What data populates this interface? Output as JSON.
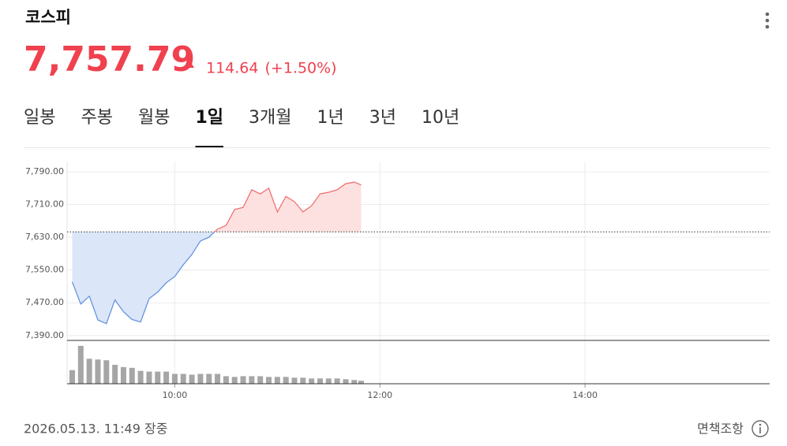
{
  "header": {
    "title": "코스피",
    "price": "7,757.79",
    "change": "114.64",
    "change_pct": "(+1.50%)"
  },
  "tabs": {
    "items": [
      "일봉",
      "주봉",
      "월봉",
      "1일",
      "3개월",
      "1년",
      "3년",
      "10년"
    ],
    "selected": 3
  },
  "chart_data": {
    "type": "line",
    "x": [
      "09:00",
      "09:05",
      "09:10",
      "09:15",
      "09:20",
      "09:25",
      "09:30",
      "09:35",
      "09:40",
      "09:45",
      "09:50",
      "09:55",
      "10:00",
      "10:05",
      "10:10",
      "10:15",
      "10:20",
      "10:25",
      "10:30",
      "10:35",
      "10:40",
      "10:45",
      "10:50",
      "10:55",
      "11:00",
      "11:05",
      "11:10",
      "11:15",
      "11:20",
      "11:25",
      "11:30",
      "11:35",
      "11:40",
      "11:45",
      "11:49"
    ],
    "series": [
      {
        "values": [
          7521,
          7467,
          7486,
          7428,
          7419,
          7477,
          7448,
          7429,
          7423,
          7480,
          7496,
          7519,
          7534,
          7563,
          7588,
          7621,
          7630,
          7650,
          7659,
          7698,
          7703,
          7746,
          7736,
          7750,
          7692,
          7730,
          7717,
          7692,
          7707,
          7736,
          7740,
          7746,
          7761,
          7765,
          7757.79
        ],
        "color_up": "#f06a6a",
        "color_down": "#5b8de0",
        "fill_up": "#fde0e0",
        "fill_down": "#dbe6f8"
      }
    ],
    "base": 7643.15,
    "volume": {
      "values": [
        18,
        50,
        33,
        32,
        31,
        25,
        22,
        21,
        17,
        16,
        16,
        16,
        13,
        13,
        12,
        13,
        13,
        13,
        10,
        9,
        10,
        10,
        10,
        9,
        9,
        9,
        8,
        8,
        7,
        7,
        7,
        7,
        6,
        5,
        4
      ],
      "color": "#a6a6a6",
      "ylim": [
        0,
        52
      ]
    },
    "xlim": [
      "08:57",
      "15:48"
    ],
    "xticks": [
      "10:00",
      "12:00",
      "14:00"
    ],
    "ylim": [
      7380,
      7815
    ],
    "yticks": [
      {
        "value": 7390,
        "label": "7,390.00"
      },
      {
        "value": 7470,
        "label": "7,470.00"
      },
      {
        "value": 7550,
        "label": "7,550.00"
      },
      {
        "value": 7630,
        "label": "7,630.00"
      },
      {
        "value": 7710,
        "label": "7,710.00"
      },
      {
        "value": 7790,
        "label": "7,790.00"
      }
    ],
    "grid": true
  },
  "footer": {
    "timestamp": "2026.05.13. 11:49 장중",
    "disclaimer": "면책조항"
  }
}
